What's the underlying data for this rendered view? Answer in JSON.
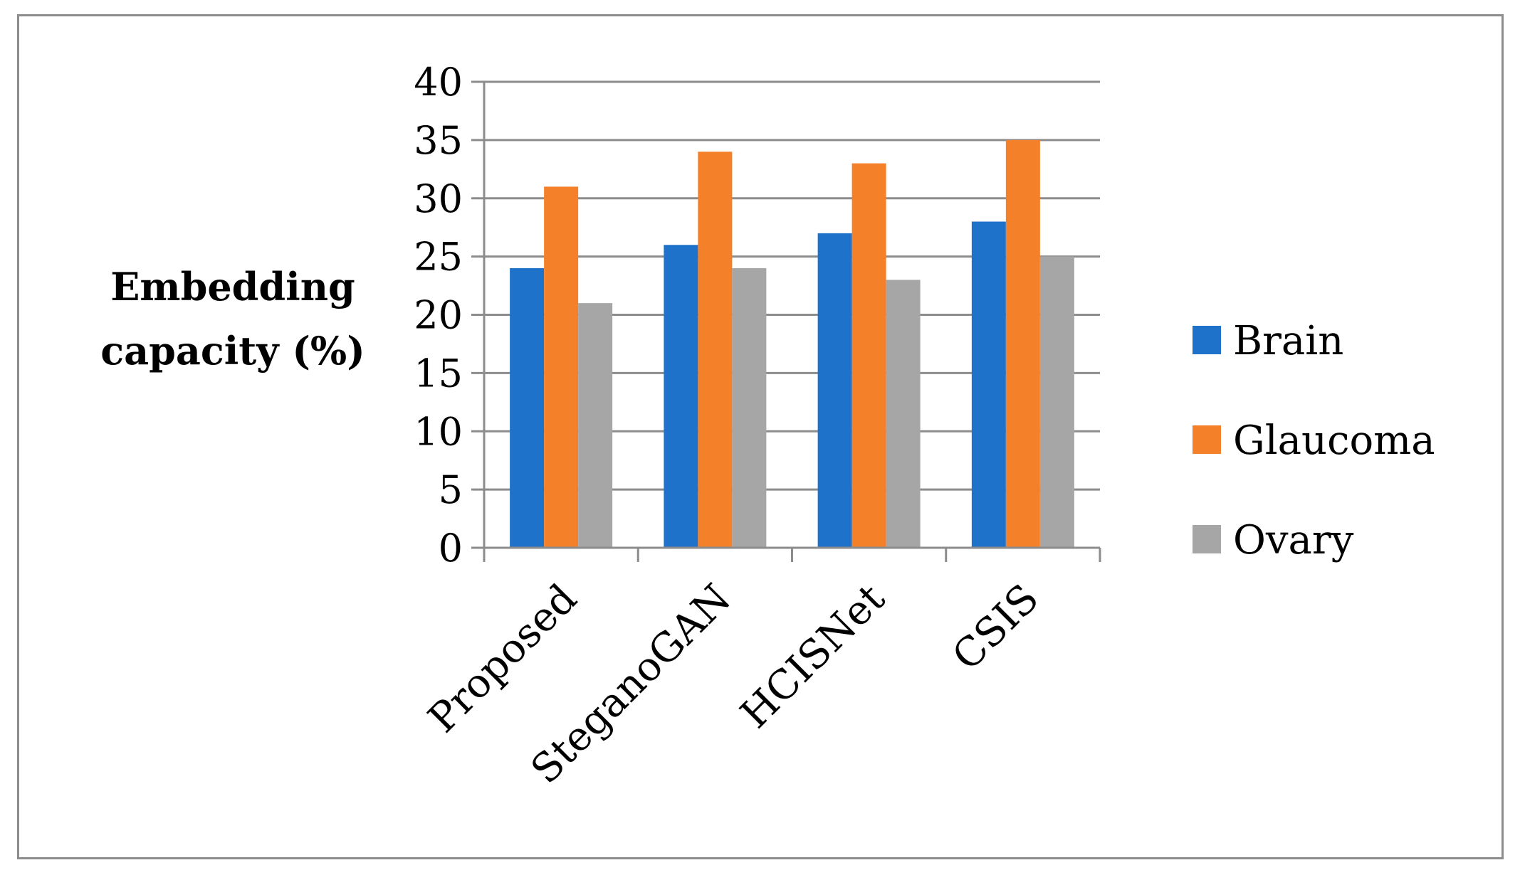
{
  "chart_data": {
    "type": "bar",
    "title": "",
    "xlabel": "",
    "ylabel": [
      "Embedding",
      "capacity (%)"
    ],
    "ylim": [
      0,
      40
    ],
    "yticks": [
      "0",
      "5",
      "10",
      "15",
      "20",
      "25",
      "30",
      "35",
      "40"
    ],
    "ytick_values": [
      0,
      5,
      10,
      15,
      20,
      25,
      30,
      35,
      40
    ],
    "categories": [
      "Proposed",
      "SteganoGAN",
      "HCISNet",
      "CSIS"
    ],
    "series": [
      {
        "name": "Brain",
        "color": "#1f72c9",
        "values": [
          24,
          26,
          27,
          28
        ]
      },
      {
        "name": "Glaucoma",
        "color": "#f5802a",
        "values": [
          31,
          34,
          33,
          35
        ]
      },
      {
        "name": "Ovary",
        "color": "#a6a6a6",
        "values": [
          21,
          24,
          23,
          25
        ]
      }
    ],
    "grid": true,
    "legend_position": "right"
  }
}
